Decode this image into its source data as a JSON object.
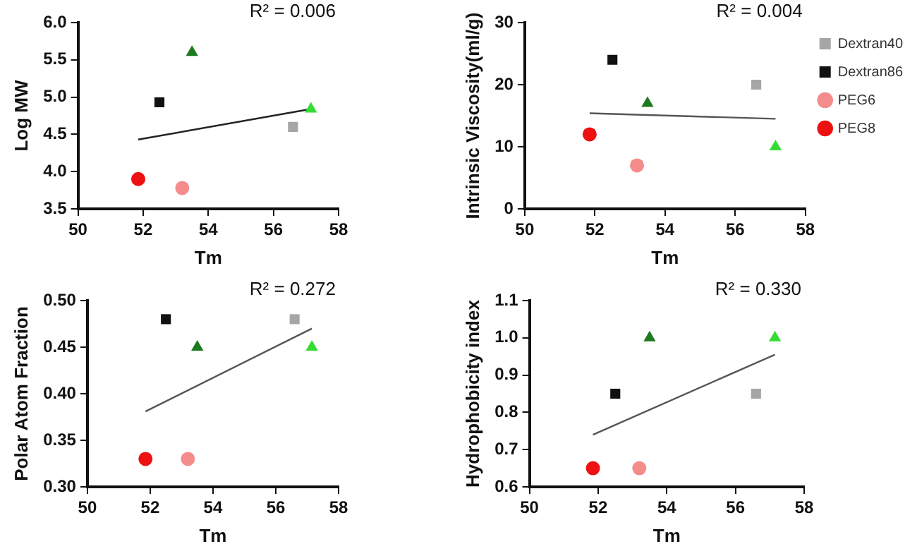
{
  "chart_data": [
    {
      "type": "scatter",
      "xlabel": "Tm",
      "ylabel": "Log MW",
      "xlim": [
        50,
        58
      ],
      "xticks": [
        50,
        52,
        54,
        56,
        58
      ],
      "ylim": [
        3.5,
        6.0
      ],
      "yticks": [
        3.5,
        {
          "value": 4,
          "label": "4.0"
        },
        4.5,
        {
          "value": 5,
          "label": "5.0"
        },
        5.5,
        {
          "value": 6,
          "label": "6.0"
        }
      ],
      "grid": false,
      "legend": false,
      "annotations": [
        "R² = 0.006"
      ],
      "series": [
        {
          "color": "#33dd33",
          "marker": "triangle",
          "x": [
            57.15
          ],
          "values": [
            4.84
          ]
        },
        {
          "color": "#1e7a1e",
          "marker": "triangle",
          "x": [
            53.5
          ],
          "values": [
            5.6
          ]
        },
        {
          "color": "#a6a6a6",
          "marker": "square",
          "x": [
            56.6
          ],
          "values": [
            4.6
          ]
        },
        {
          "color": "#111111",
          "marker": "square",
          "x": [
            52.5
          ],
          "values": [
            4.93
          ]
        },
        {
          "color": "#f48c8c",
          "marker": "circle",
          "x": [
            53.2
          ],
          "values": [
            3.78
          ]
        },
        {
          "color": "#ee1111",
          "marker": "circle",
          "x": [
            51.85
          ],
          "values": [
            3.9
          ]
        },
        {
          "type": "line",
          "color": "#222222",
          "marker": "none",
          "x": [
            51.85,
            57.15
          ],
          "values": [
            4.43,
            4.84
          ]
        }
      ]
    },
    {
      "type": "scatter",
      "xlabel": "Tm",
      "ylabel": "Intrinsic Viscosity(ml/g)",
      "xlim": [
        50,
        58
      ],
      "xticks": [
        50,
        52,
        54,
        56,
        58
      ],
      "ylim": [
        0,
        30
      ],
      "yticks": [
        0,
        10,
        20,
        30
      ],
      "grid": false,
      "legend": "right",
      "annotations": [
        "R² = 0.004"
      ],
      "series": [
        {
          "color": "#33dd33",
          "marker": "triangle",
          "x": [
            57.15
          ],
          "values": [
            10
          ]
        },
        {
          "color": "#1e7a1e",
          "marker": "triangle",
          "x": [
            53.5
          ],
          "values": [
            17
          ]
        },
        {
          "name": "Dextran40",
          "color": "#a6a6a6",
          "marker": "square",
          "x": [
            56.6
          ],
          "values": [
            20
          ]
        },
        {
          "name": "Dextran86",
          "color": "#111111",
          "marker": "square",
          "x": [
            52.5
          ],
          "values": [
            24
          ]
        },
        {
          "name": "PEG6",
          "color": "#f48c8c",
          "marker": "circle",
          "x": [
            53.2
          ],
          "values": [
            7
          ]
        },
        {
          "name": "PEG8",
          "color": "#ee1111",
          "marker": "circle",
          "x": [
            51.85
          ],
          "values": [
            12
          ]
        },
        {
          "type": "line",
          "color": "#555555",
          "marker": "none",
          "x": [
            51.85,
            57.15
          ],
          "values": [
            15.4,
            14.5
          ]
        }
      ]
    },
    {
      "type": "scatter",
      "xlabel": "Tm",
      "ylabel": "Polar Atom Fraction",
      "xlim": [
        50,
        58
      ],
      "xticks": [
        50,
        52,
        54,
        56,
        58
      ],
      "ylim": [
        0.3,
        0.5
      ],
      "yticks": [
        {
          "value": 0.3,
          "label": "0.30"
        },
        0.35,
        {
          "value": 0.4,
          "label": "0.40"
        },
        0.45,
        {
          "value": 0.5,
          "label": "0.50"
        }
      ],
      "grid": false,
      "legend": false,
      "annotations": [
        "R² = 0.272"
      ],
      "series": [
        {
          "color": "#33dd33",
          "marker": "triangle",
          "x": [
            57.15
          ],
          "values": [
            0.45
          ]
        },
        {
          "color": "#1e7a1e",
          "marker": "triangle",
          "x": [
            53.5
          ],
          "values": [
            0.45
          ]
        },
        {
          "color": "#a6a6a6",
          "marker": "square",
          "x": [
            56.6
          ],
          "values": [
            0.48
          ]
        },
        {
          "color": "#111111",
          "marker": "square",
          "x": [
            52.5
          ],
          "values": [
            0.48
          ]
        },
        {
          "color": "#f48c8c",
          "marker": "circle",
          "x": [
            53.2
          ],
          "values": [
            0.33
          ]
        },
        {
          "color": "#ee1111",
          "marker": "circle",
          "x": [
            51.85
          ],
          "values": [
            0.33
          ]
        },
        {
          "type": "line",
          "color": "#555555",
          "marker": "none",
          "x": [
            51.85,
            57.15
          ],
          "values": [
            0.381,
            0.47
          ]
        }
      ]
    },
    {
      "type": "scatter",
      "xlabel": "Tm",
      "ylabel": "Hydrophobicity index",
      "xlim": [
        50,
        58
      ],
      "xticks": [
        50,
        52,
        54,
        56,
        58
      ],
      "ylim": [
        0.6,
        1.1
      ],
      "yticks": [
        0.6,
        0.7,
        0.8,
        0.9,
        {
          "value": 1,
          "label": "1.0"
        },
        1.1
      ],
      "grid": false,
      "legend": false,
      "annotations": [
        "R² = 0.330"
      ],
      "series": [
        {
          "color": "#33dd33",
          "marker": "triangle",
          "x": [
            57.15
          ],
          "values": [
            1.0
          ]
        },
        {
          "color": "#1e7a1e",
          "marker": "triangle",
          "x": [
            53.5
          ],
          "values": [
            1.0
          ]
        },
        {
          "color": "#a6a6a6",
          "marker": "square",
          "x": [
            56.6
          ],
          "values": [
            0.85
          ]
        },
        {
          "color": "#111111",
          "marker": "square",
          "x": [
            52.5
          ],
          "values": [
            0.85
          ]
        },
        {
          "color": "#f48c8c",
          "marker": "circle",
          "x": [
            53.2
          ],
          "values": [
            0.65
          ]
        },
        {
          "color": "#ee1111",
          "marker": "circle",
          "x": [
            51.85
          ],
          "values": [
            0.65
          ]
        },
        {
          "type": "line",
          "color": "#555555",
          "marker": "none",
          "x": [
            51.85,
            57.15
          ],
          "values": [
            0.74,
            0.955
          ]
        }
      ]
    }
  ]
}
